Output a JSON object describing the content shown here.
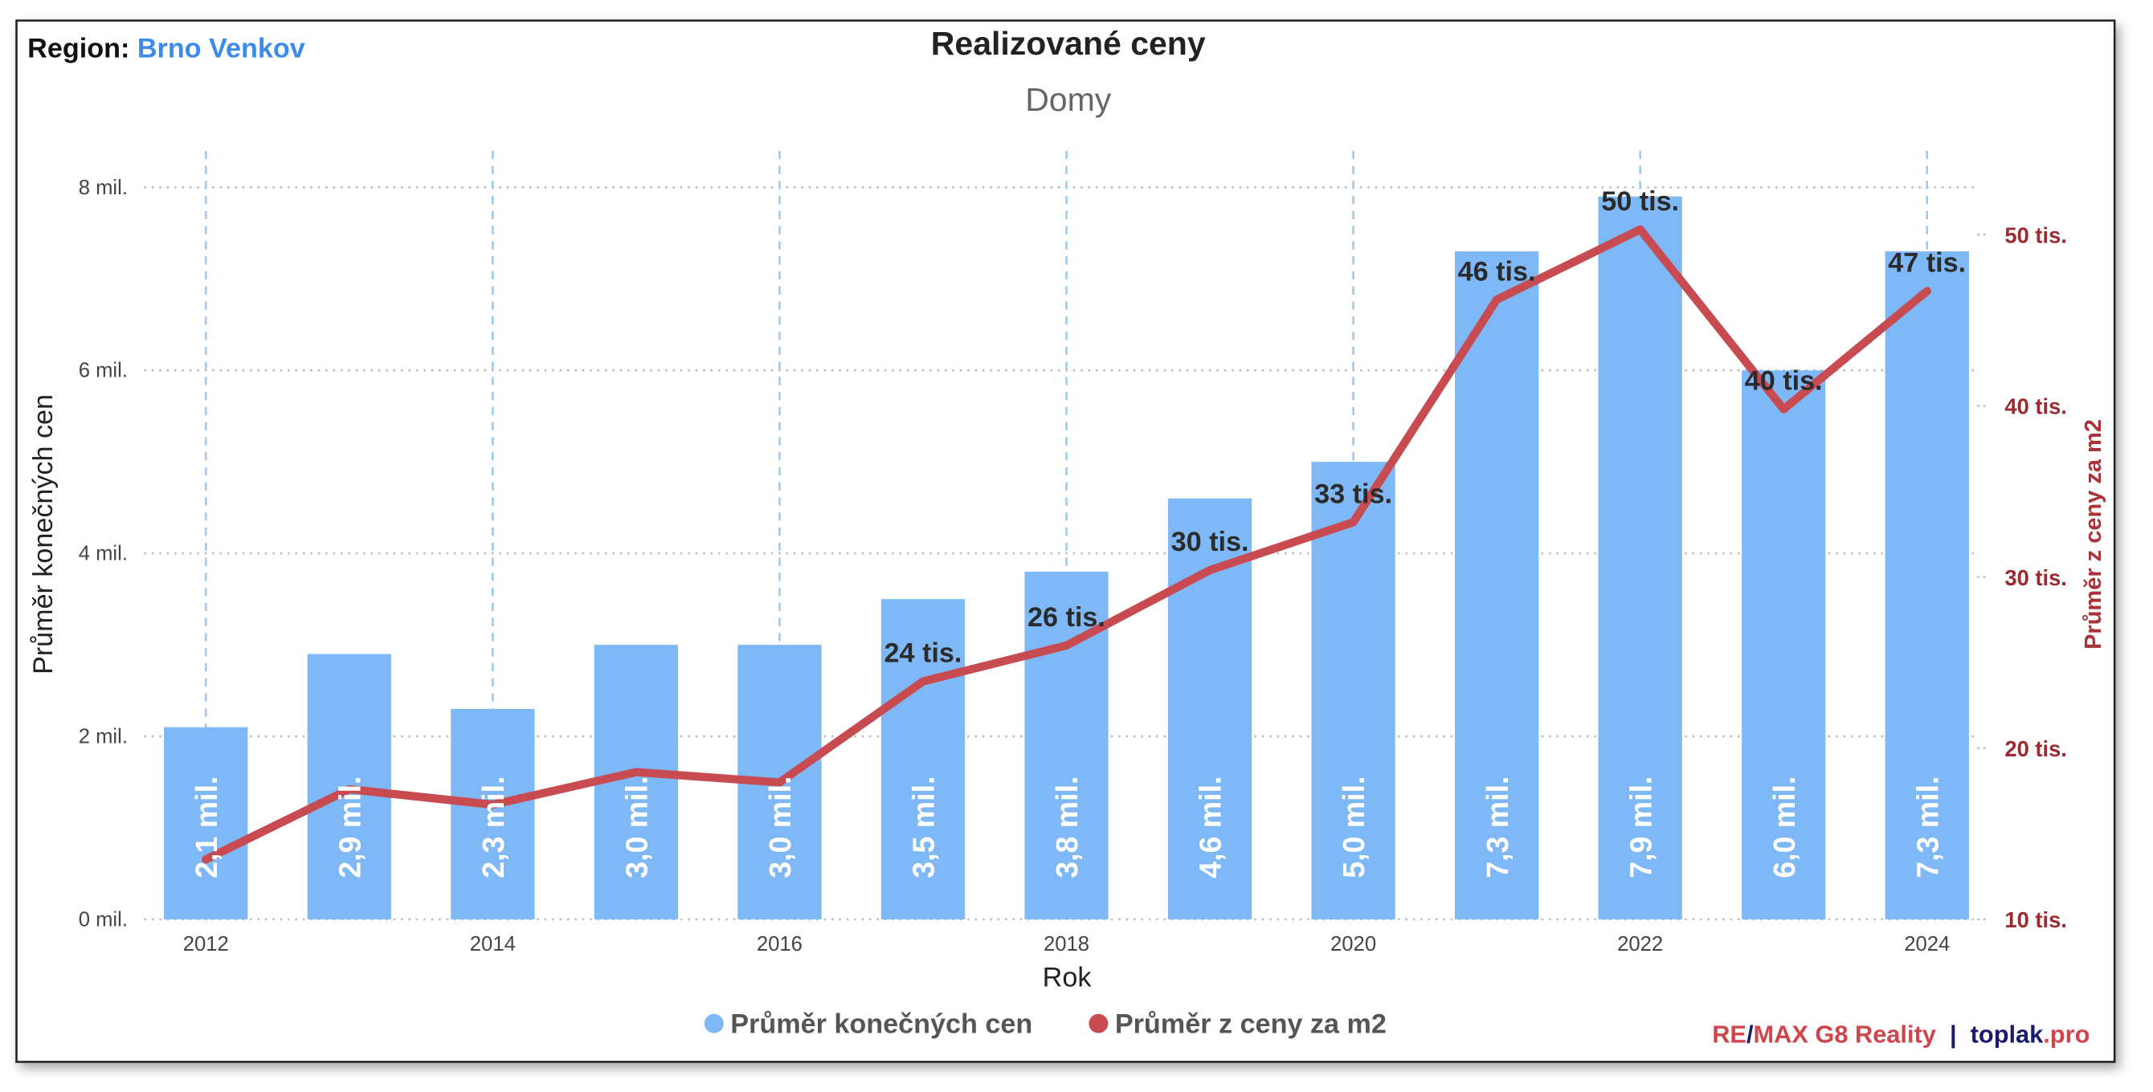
{
  "chart_data": {
    "type": "bar",
    "region_label": "Region:",
    "region": "Brno Venkov",
    "title": "Realizované ceny",
    "subtitle": "Domy",
    "x_label": "Rok",
    "y_label": "Průměr konečných cen",
    "y2_label": "Průměr z ceny za m2",
    "x": [
      2012,
      2013,
      2014,
      2015,
      2016,
      2017,
      2018,
      2019,
      2020,
      2021,
      2022,
      2023,
      2024
    ],
    "xlim": [
      2011.57,
      2024.35
    ],
    "xticks": [
      2012,
      2014,
      2016,
      2018,
      2020,
      2022,
      2024
    ],
    "ylim": [
      0,
      8.4
    ],
    "yticks": [
      {
        "value": 0,
        "label": "0 mil."
      },
      {
        "value": 2,
        "label": "2 mil."
      },
      {
        "value": 4,
        "label": "4 mil."
      },
      {
        "value": 6,
        "label": "6 mil."
      },
      {
        "value": 8,
        "label": "8 mil."
      }
    ],
    "y2lim": [
      10,
      54.9
    ],
    "y2ticks": [
      {
        "value": 10,
        "label": "10 tis."
      },
      {
        "value": 20,
        "label": "20 tis."
      },
      {
        "value": 30,
        "label": "30 tis."
      },
      {
        "value": 40,
        "label": "40 tis."
      },
      {
        "value": 50,
        "label": "50 tis."
      }
    ],
    "grid": true,
    "series": [
      {
        "name": "Průměr konečných cen",
        "type": "bar",
        "color": "#7fb8f7",
        "values": [
          2.1,
          2.9,
          2.3,
          3.0,
          3.0,
          3.5,
          3.8,
          4.6,
          5.0,
          7.3,
          7.9,
          6.0,
          7.3
        ],
        "value_labels": [
          "2,1 mil.",
          "2,9 mil.",
          "2,3 mil.",
          "3,0 mil.",
          "3,0 mil.",
          "3,5 mil.",
          "3,8 mil.",
          "4,6 mil.",
          "5,0 mil.",
          "7,3 mil.",
          "7,9 mil.",
          "6,0 mil.",
          "7,3 mil."
        ]
      },
      {
        "name": "Průměr z ceny za m2",
        "type": "line",
        "axis": "y2",
        "color": "#c84b51",
        "values": [
          13.5,
          17.6,
          16.7,
          18.6,
          18,
          23.9,
          26,
          30.4,
          33.2,
          46.2,
          50.3,
          39.8,
          46.7
        ],
        "value_labels": [
          null,
          null,
          null,
          null,
          null,
          "24 tis.",
          "26 tis.",
          "30 tis.",
          "33 tis.",
          "46 tis.",
          "50 tis.",
          "40 tis.",
          "47 tis."
        ]
      }
    ],
    "footer": [
      "RE",
      "/",
      "MAX G8 Reality",
      "|",
      "toplak",
      ".pro"
    ]
  }
}
